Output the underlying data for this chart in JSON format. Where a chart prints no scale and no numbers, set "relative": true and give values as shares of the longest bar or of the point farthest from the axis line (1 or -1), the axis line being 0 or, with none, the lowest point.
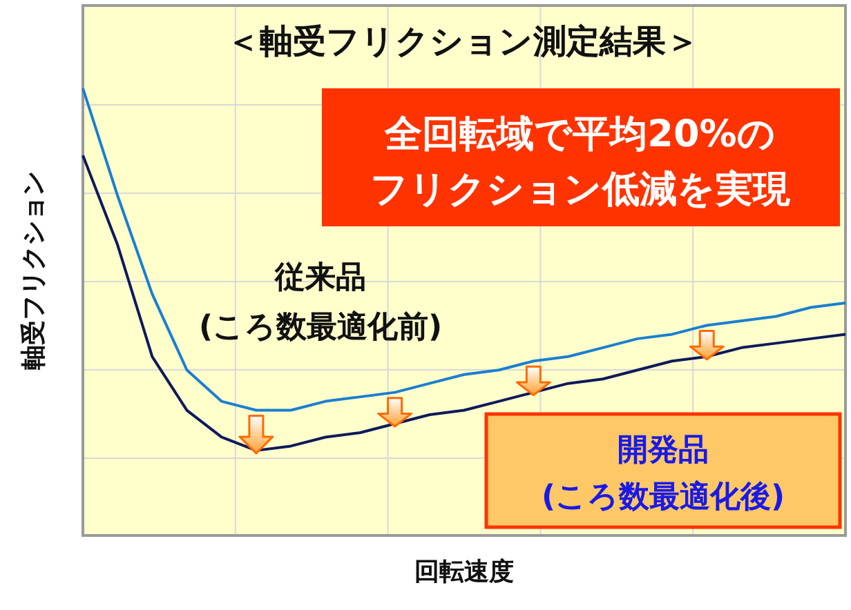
{
  "chart_data": {
    "type": "line",
    "relative": true,
    "title": "＜軸受フリクション測定結果＞",
    "xlabel": "回転速度",
    "ylabel": "軸受フリクション",
    "grid": true,
    "marker": "none",
    "line_style": "solid",
    "categories": [
      null,
      null,
      null,
      null,
      null,
      null,
      null,
      null,
      null,
      null,
      null,
      null,
      null,
      null,
      null,
      null,
      null,
      null,
      null,
      null,
      null,
      null,
      null
    ],
    "series": [
      {
        "name": "従来品\n(ころ数最適化前)",
        "color": "#1a7fd0",
        "values": [
          1,
          0.76,
          0.54,
          0.37,
          0.3,
          0.28,
          0.28,
          0.3,
          0.31,
          0.32,
          0.34,
          0.36,
          0.37,
          0.39,
          0.4,
          0.42,
          0.44,
          0.45,
          0.47,
          0.48,
          0.49,
          0.51,
          0.52
        ]
      },
      {
        "name": "開発品\n(ころ数最適化後)",
        "color": "#0d1a5c",
        "values": [
          0.85,
          0.65,
          0.4,
          0.28,
          0.22,
          0.19,
          0.2,
          0.22,
          0.23,
          0.25,
          0.27,
          0.28,
          0.3,
          0.32,
          0.34,
          0.35,
          0.37,
          0.39,
          0.4,
          0.42,
          0.43,
          0.44,
          0.45
        ]
      }
    ],
    "annotations": [
      "全回転域で平均20%の",
      "フリクション低減を実現"
    ]
  }
}
